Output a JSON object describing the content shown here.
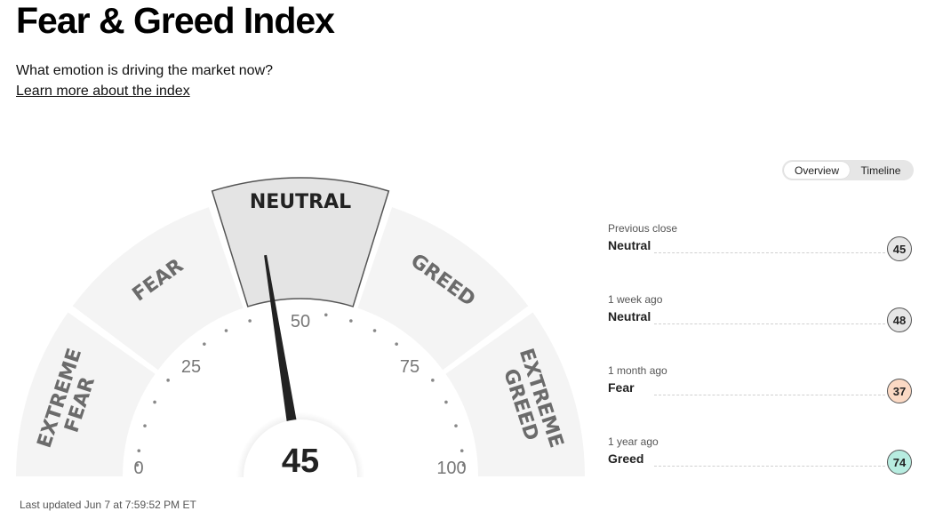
{
  "header": {
    "title": "Fear & Greed Index",
    "subtitle": "What emotion is driving the market now?",
    "learn_more": "Learn more about the index"
  },
  "view_toggle": {
    "options": [
      "Overview",
      "Timeline"
    ],
    "selected": "Overview"
  },
  "gauge": {
    "value": 45,
    "value_label": "45",
    "min_label": "0",
    "max_label": "100",
    "tick_labels": [
      "0",
      "25",
      "50",
      "75",
      "100"
    ],
    "segments": [
      {
        "label_lines": [
          "EXTREME",
          "FEAR"
        ]
      },
      {
        "label_lines": [
          "FEAR"
        ]
      },
      {
        "label_lines": [
          "NEUTRAL"
        ]
      },
      {
        "label_lines": [
          "GREED"
        ]
      },
      {
        "label_lines": [
          "EXTREME",
          "GREED"
        ]
      }
    ],
    "active_segment": 2
  },
  "last_updated": "Last updated Jun 7 at 7:59:52 PM ET",
  "history": [
    {
      "label": "Previous close",
      "rating": "Neutral",
      "value": "45",
      "color": "#e6e6e6"
    },
    {
      "label": "1 week ago",
      "rating": "Neutral",
      "value": "48",
      "color": "#e6e6e6"
    },
    {
      "label": "1 month ago",
      "rating": "Fear",
      "value": "37",
      "color": "#fbd9c4"
    },
    {
      "label": "1 year ago",
      "rating": "Greed",
      "value": "74",
      "color": "#b7ece0"
    }
  ],
  "colors": {
    "segment_fill": "#f4f4f4",
    "active_fill": "#e4e4e4",
    "needle": "#222222",
    "label": "#6b6b6b"
  }
}
